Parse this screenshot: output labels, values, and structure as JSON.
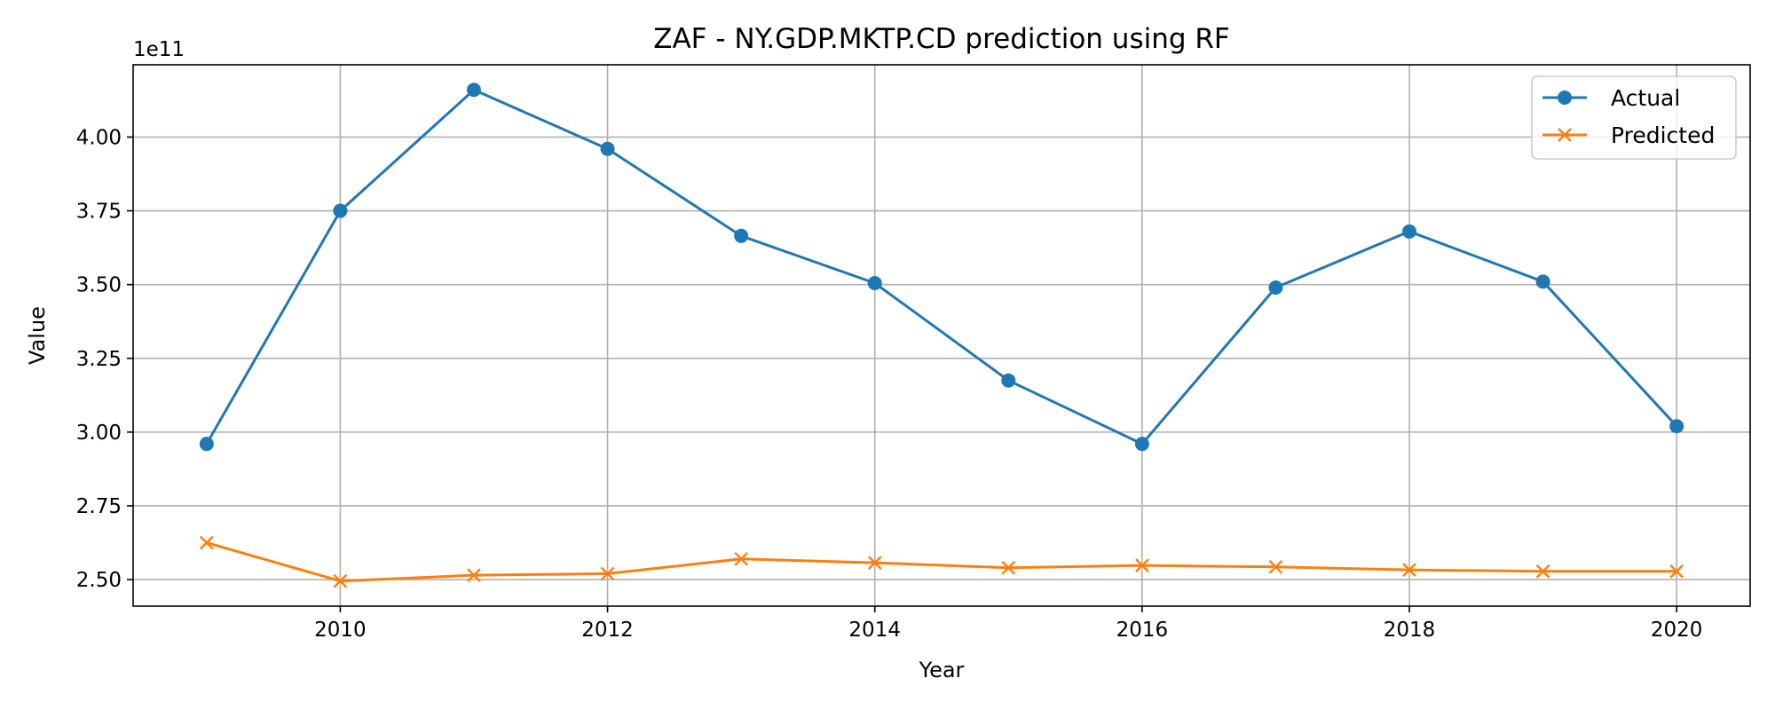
{
  "chart_data": {
    "type": "line",
    "title": "ZAF - NY.GDP.MKTP.CD prediction using RF",
    "xlabel": "Year",
    "ylabel": "Value",
    "y_offset_label": "1e11",
    "x": [
      2009,
      2010,
      2011,
      2012,
      2013,
      2014,
      2015,
      2016,
      2017,
      2018,
      2019,
      2020
    ],
    "x_ticks": [
      2010,
      2012,
      2014,
      2016,
      2018,
      2020
    ],
    "y_ticks": [
      2.5,
      2.75,
      3.0,
      3.25,
      3.5,
      3.75,
      4.0
    ],
    "y_tick_labels": [
      "2.50",
      "2.75",
      "3.00",
      "3.25",
      "3.50",
      "3.75",
      "4.00"
    ],
    "xlim": [
      2008.45,
      2020.55
    ],
    "ylim": [
      2.41,
      4.245
    ],
    "grid": true,
    "legend_position": "top-right",
    "series": [
      {
        "name": "Actual",
        "color": "#1f77b4",
        "marker": "circle",
        "values": [
          2.96,
          3.75,
          4.16,
          3.96,
          3.665,
          3.505,
          3.175,
          2.96,
          3.49,
          3.68,
          3.51,
          3.02
        ]
      },
      {
        "name": "Predicted",
        "color": "#ff7f0e",
        "marker": "x",
        "values": [
          2.625,
          2.495,
          2.515,
          2.52,
          2.57,
          2.557,
          2.54,
          2.548,
          2.543,
          2.533,
          2.528,
          2.528
        ]
      }
    ]
  }
}
